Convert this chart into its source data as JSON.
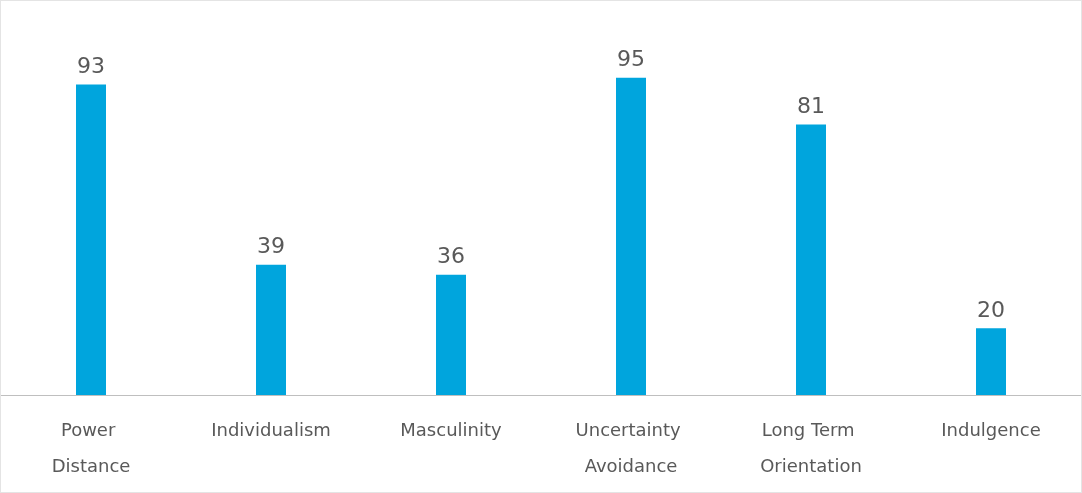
{
  "chart_data": {
    "type": "bar",
    "categories": [
      "Power Distance",
      "Individualism",
      "Masculinity",
      "Uncertainty Avoidance",
      "Long Term Orientation",
      "Indulgence"
    ],
    "values": [
      93,
      39,
      36,
      95,
      81,
      20
    ],
    "color": "#00a5dd",
    "data_labels": true
  }
}
